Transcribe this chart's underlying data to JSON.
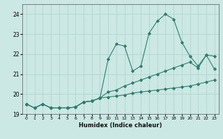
{
  "xlabel": "Humidex (Indice chaleur)",
  "ylabel": "",
  "background_color": "#cce8e4",
  "line_color": "#2e7d6e",
  "grid_color": "#aad0cc",
  "xlim_min": -0.5,
  "xlim_max": 23.5,
  "ylim_min": 19.0,
  "ylim_max": 24.5,
  "yticks": [
    19,
    20,
    21,
    22,
    23,
    24
  ],
  "xticks": [
    0,
    1,
    2,
    3,
    4,
    5,
    6,
    7,
    8,
    9,
    10,
    11,
    12,
    13,
    14,
    15,
    16,
    17,
    18,
    19,
    20,
    21,
    22,
    23
  ],
  "series1_x": [
    0,
    1,
    2,
    3,
    4,
    5,
    6,
    7,
    8,
    9,
    10,
    11,
    12,
    13,
    14,
    15,
    16,
    17,
    18,
    19,
    20,
    21,
    22,
    23
  ],
  "series1_y": [
    19.5,
    19.3,
    19.5,
    19.3,
    19.3,
    19.3,
    19.35,
    19.6,
    19.65,
    19.8,
    19.85,
    19.9,
    19.95,
    20.05,
    20.1,
    20.15,
    20.2,
    20.25,
    20.3,
    20.35,
    20.4,
    20.5,
    20.6,
    20.7
  ],
  "series2_x": [
    0,
    1,
    2,
    3,
    4,
    5,
    6,
    7,
    8,
    9,
    10,
    11,
    12,
    13,
    14,
    15,
    16,
    17,
    18,
    19,
    20,
    21,
    22,
    23
  ],
  "series2_y": [
    19.5,
    19.3,
    19.5,
    19.3,
    19.3,
    19.3,
    19.35,
    19.6,
    19.65,
    19.8,
    21.75,
    22.5,
    22.4,
    21.15,
    21.4,
    23.05,
    23.65,
    24.0,
    23.75,
    22.6,
    21.9,
    21.4,
    21.95,
    21.9
  ],
  "series3_x": [
    0,
    1,
    2,
    3,
    4,
    5,
    6,
    7,
    8,
    9,
    10,
    11,
    12,
    13,
    14,
    15,
    16,
    17,
    18,
    19,
    20,
    21,
    22,
    23
  ],
  "series3_y": [
    19.5,
    19.3,
    19.5,
    19.3,
    19.3,
    19.3,
    19.35,
    19.6,
    19.65,
    19.8,
    20.1,
    20.2,
    20.4,
    20.55,
    20.7,
    20.85,
    21.0,
    21.15,
    21.3,
    21.45,
    21.6,
    21.3,
    21.95,
    21.25
  ]
}
